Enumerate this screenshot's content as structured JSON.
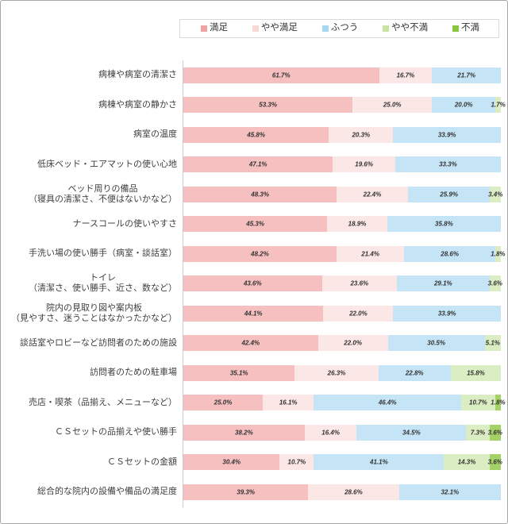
{
  "chart_data": {
    "type": "bar",
    "orientation": "horizontal",
    "stacked": true,
    "unit": "%",
    "xlim": [
      0,
      100
    ],
    "legend_position": "top",
    "grid": false,
    "series": [
      {
        "name": "満足",
        "legend_color": "#F0A3A5",
        "bar_color": "#F6C0C0"
      },
      {
        "name": "やや満足",
        "legend_color": "#FAD8D8",
        "bar_color": "#FCE7E7"
      },
      {
        "name": "ふつう",
        "legend_color": "#A8D8F0",
        "bar_color": "#C5E5F6"
      },
      {
        "name": "やや不満",
        "legend_color": "#C7E5A0",
        "bar_color": "#DBEDC2"
      },
      {
        "name": "不満",
        "legend_color": "#8CC63F",
        "bar_color": "#A5D266"
      }
    ],
    "rows": [
      {
        "label": "病棟や病室の清潔さ",
        "values": [
          61.7,
          16.7,
          21.7,
          0,
          0
        ]
      },
      {
        "label": "病棟や病室の静かさ",
        "values": [
          53.3,
          25.0,
          20.0,
          1.7,
          0
        ]
      },
      {
        "label": "病室の温度",
        "values": [
          45.8,
          20.3,
          33.9,
          0,
          0
        ]
      },
      {
        "label": "低床ベッド・エアマットの使い心地",
        "values": [
          47.1,
          19.6,
          33.3,
          0,
          0
        ]
      },
      {
        "label": "ベッド周りの備品\n（寝具の清潔さ、不便はないかなど）",
        "values": [
          48.3,
          22.4,
          25.9,
          3.4,
          0
        ]
      },
      {
        "label": "ナースコールの使いやすさ",
        "values": [
          45.3,
          18.9,
          35.8,
          0,
          0
        ]
      },
      {
        "label": "手洗い場の使い勝手（病室・談話室）",
        "values": [
          48.2,
          21.4,
          28.6,
          1.8,
          0
        ]
      },
      {
        "label": "トイレ\n（清潔さ、使い勝手、近さ、数など）",
        "values": [
          43.6,
          23.6,
          29.1,
          3.6,
          0
        ]
      },
      {
        "label": "院内の見取り図や案内板\n（見やすさ、迷うことはなかったかなど）",
        "values": [
          44.1,
          22.0,
          33.9,
          0,
          0
        ]
      },
      {
        "label": "談話室やロビーなど訪問者のための施設",
        "values": [
          42.4,
          22.0,
          30.5,
          5.1,
          0
        ]
      },
      {
        "label": "訪問者のための駐車場",
        "values": [
          35.1,
          26.3,
          22.8,
          15.8,
          0
        ]
      },
      {
        "label": "売店・喫茶（品揃え、メニューなど）",
        "values": [
          25.0,
          16.1,
          46.4,
          10.7,
          1.8
        ]
      },
      {
        "label": "ＣＳセットの品揃えや使い勝手",
        "values": [
          38.2,
          16.4,
          34.5,
          7.3,
          3.6
        ]
      },
      {
        "label": "ＣＳセットの金額",
        "values": [
          30.4,
          10.7,
          41.1,
          14.3,
          3.6
        ]
      },
      {
        "label": "総合的な院内の設備や備品の満足度",
        "values": [
          39.3,
          28.6,
          32.1,
          0,
          0
        ]
      }
    ]
  }
}
